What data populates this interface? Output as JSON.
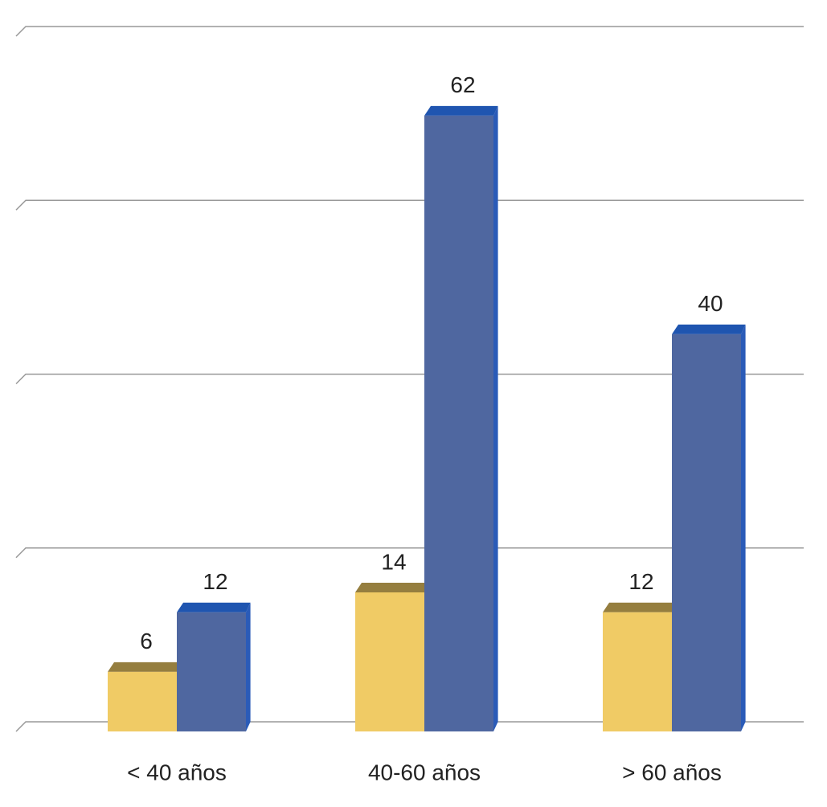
{
  "chart_data": {
    "type": "bar3d",
    "categories": [
      "< 40 años",
      "40-60 años",
      "> 60 años"
    ],
    "series": [
      {
        "color": "#f0cb65",
        "values": [
          6,
          14,
          12
        ]
      },
      {
        "color": "#4f67a0",
        "values": [
          12,
          62,
          40
        ]
      }
    ],
    "ylim": [
      0,
      70
    ],
    "yticks": [
      0,
      17.5,
      35,
      52.5,
      70
    ],
    "grid": true
  }
}
